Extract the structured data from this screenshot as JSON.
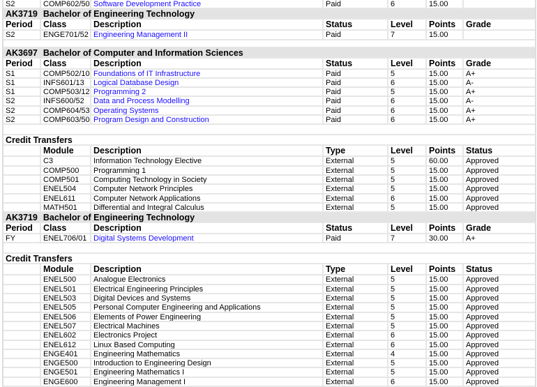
{
  "columns": {
    "enrolment": [
      "Period",
      "Class",
      "Description",
      "Status",
      "Level",
      "Points",
      "Grade"
    ],
    "credit": [
      "",
      "Module",
      "Description",
      "Type",
      "Level",
      "Points",
      "Status"
    ]
  },
  "link_color": "#1a0dff",
  "blocks": [
    {
      "kind": "enrolment",
      "partial_top": true,
      "rows": [
        [
          "S2",
          "COMP602/50",
          "Software Development Practice",
          "Paid",
          "6",
          "15.00",
          ""
        ]
      ]
    },
    {
      "kind": "enrolment",
      "code": "AK3719",
      "program": "Bachelor of Engineering Technology",
      "rows": [
        [
          "S2",
          "ENGE701/52",
          "Engineering Management II",
          "Paid",
          "7",
          "15.00",
          ""
        ]
      ]
    },
    {
      "kind": "blank"
    },
    {
      "kind": "enrolment",
      "code": "AK3697",
      "program": "Bachelor of Computer and Information Sciences",
      "rows": [
        [
          "S1",
          "COMP502/10",
          "Foundations of IT Infrastructure",
          "Paid",
          "5",
          "15.00",
          "A+"
        ],
        [
          "S1",
          "INFS601/13",
          "Logical Database Design",
          "Paid",
          "6",
          "15.00",
          "A-"
        ],
        [
          "S1",
          "COMP503/12",
          "Programming 2",
          "Paid",
          "5",
          "15.00",
          "A+"
        ],
        [
          "S2",
          "INFS600/52",
          "Data and Process Modelling",
          "Paid",
          "6",
          "15.00",
          "A-"
        ],
        [
          "S2",
          "COMP604/53",
          "Operating Systems",
          "Paid",
          "6",
          "15.00",
          "A+"
        ],
        [
          "S2",
          "COMP603/50",
          "Program Design and Construction",
          "Paid",
          "6",
          "15.00",
          "A+"
        ]
      ]
    },
    {
      "kind": "blank",
      "tall": true
    },
    {
      "kind": "credit",
      "title": "Credit Transfers",
      "rows": [
        [
          "",
          "C3",
          "Information Technology Elective",
          "External",
          "5",
          "60.00",
          "Approved"
        ],
        [
          "",
          "COMP500",
          "Programming 1",
          "External",
          "5",
          "15.00",
          "Approved"
        ],
        [
          "",
          "COMP501",
          "Computing Technology in Society",
          "External",
          "5",
          "15.00",
          "Approved"
        ],
        [
          "",
          "ENEL504",
          "Computer Network Principles",
          "External",
          "5",
          "15.00",
          "Approved"
        ],
        [
          "",
          "ENEL611",
          "Computer Network Applications",
          "External",
          "6",
          "15.00",
          "Approved"
        ],
        [
          "",
          "MATH501",
          "Differential and Integral Calculus",
          "External",
          "5",
          "15.00",
          "Approved"
        ]
      ]
    },
    {
      "kind": "enrolment",
      "code": "AK3719",
      "program": "Bachelor of Engineering Technology",
      "rows": [
        [
          "FY",
          "ENEL706/01",
          "Digital Systems Development",
          "Paid",
          "7",
          "30.00",
          "A+"
        ]
      ]
    },
    {
      "kind": "blank",
      "tall": true
    },
    {
      "kind": "credit",
      "title": "Credit Transfers",
      "rows": [
        [
          "",
          "ENEL500",
          "Analogue Electronics",
          "External",
          "5",
          "15.00",
          "Approved"
        ],
        [
          "",
          "ENEL501",
          "Electrical Engineering Principles",
          "External",
          "5",
          "15.00",
          "Approved"
        ],
        [
          "",
          "ENEL503",
          "Digital Devices and Systems",
          "External",
          "5",
          "15.00",
          "Approved"
        ],
        [
          "",
          "ENEL505",
          "Personal Computer Engineering and Applications",
          "External",
          "5",
          "15.00",
          "Approved"
        ],
        [
          "",
          "ENEL506",
          "Elements of Power Engineering",
          "External",
          "5",
          "15.00",
          "Approved"
        ],
        [
          "",
          "ENEL507",
          "Electrical Machines",
          "External",
          "5",
          "15.00",
          "Approved"
        ],
        [
          "",
          "ENEL602",
          "Electronics Project",
          "External",
          "6",
          "15.00",
          "Approved"
        ],
        [
          "",
          "ENEL612",
          "Linux Based Computing",
          "External",
          "6",
          "15.00",
          "Approved"
        ],
        [
          "",
          "ENGE401",
          "Engineering Mathematics",
          "External",
          "4",
          "15.00",
          "Approved"
        ],
        [
          "",
          "ENGE500",
          "Introduction to Engineering Design",
          "External",
          "5",
          "15.00",
          "Approved"
        ],
        [
          "",
          "ENGE501",
          "Engineering Mathematics I",
          "External",
          "5",
          "15.00",
          "Approved"
        ],
        [
          "",
          "ENGE600",
          "Engineering Management I",
          "External",
          "6",
          "15.00",
          "Approved"
        ]
      ]
    }
  ]
}
